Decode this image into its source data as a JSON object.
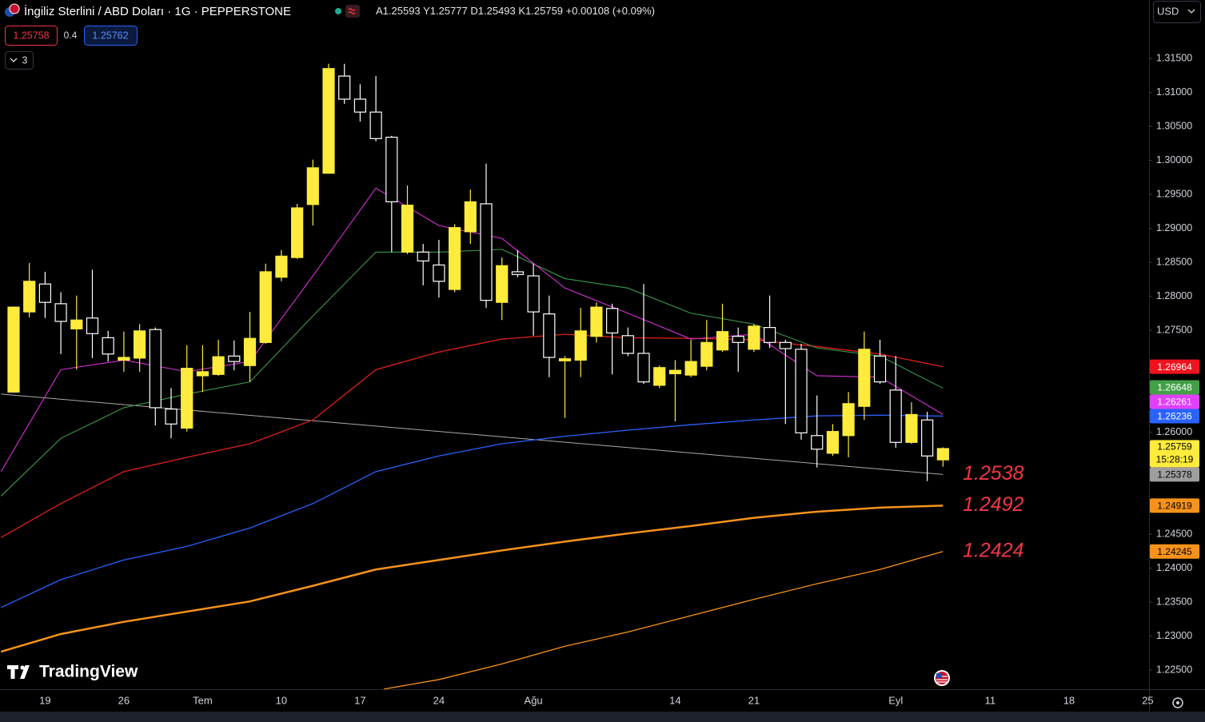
{
  "header": {
    "title": "İngiliz Sterlini / ABD Doları · 1G · PEPPERSTONE",
    "ohlc_labels": [
      "A",
      "Y",
      "D",
      "K"
    ],
    "change": "+0.00108 (+0.09%)",
    "sell": 1.25758,
    "spread": 0.4,
    "buy": 1.25762,
    "indicators": 3,
    "currency": "USD",
    "brand": "TradingView"
  },
  "chart_data": {
    "type": "candlestick",
    "up_color": "#ffeb3b",
    "down_color": "#ffffff",
    "grid": false,
    "x": [
      0,
      1,
      2,
      3,
      4,
      5,
      6,
      7,
      8,
      9,
      10,
      11,
      12,
      13,
      14,
      15,
      16,
      17,
      18,
      19,
      20,
      21,
      22,
      23,
      24,
      25,
      26,
      27,
      28,
      29,
      30,
      31,
      32,
      33,
      34,
      35,
      36,
      37,
      38,
      39,
      40,
      41,
      42,
      43,
      44,
      45,
      46,
      47,
      48,
      49,
      50,
      51,
      52,
      53,
      54,
      55,
      56,
      57,
      58,
      59
    ],
    "open": [
      1.2659,
      1.2777,
      1.2818,
      1.2789,
      1.2752,
      1.2768,
      1.2739,
      1.2706,
      1.2709,
      1.2751,
      1.2634,
      1.2606,
      1.2683,
      1.2685,
      1.2712,
      1.2698,
      1.2732,
      1.2828,
      1.2857,
      1.2935,
      1.2981,
      1.3124,
      1.309,
      1.3071,
      1.3034,
      1.2865,
      1.2865,
      1.2846,
      1.281,
      1.2895,
      1.2936,
      1.2791,
      1.2836,
      1.283,
      1.2774,
      1.2705,
      1.2706,
      1.2741,
      1.2782,
      1.2742,
      1.2716,
      1.2669,
      1.2686,
      1.2684,
      1.2697,
      1.2721,
      1.2741,
      1.2722,
      1.2754,
      1.2732,
      1.2722,
      1.2595,
      1.2569,
      1.2595,
      1.2638,
      1.2712,
      1.2662,
      1.2585,
      1.2618,
      1.25593
    ],
    "high": [
      1.2785,
      1.2849,
      1.2836,
      1.2806,
      1.2801,
      1.2839,
      1.2749,
      1.2748,
      1.2759,
      1.2754,
      1.2665,
      1.2728,
      1.2728,
      1.2736,
      1.2735,
      1.2777,
      1.2848,
      1.2868,
      1.2936,
      1.3001,
      1.3142,
      1.3142,
      1.3112,
      1.3124,
      1.3036,
      1.2963,
      1.2877,
      1.2883,
      1.2906,
      1.2957,
      1.2995,
      1.2857,
      1.2868,
      1.2848,
      1.2801,
      1.2712,
      1.2783,
      1.2791,
      1.2789,
      1.2754,
      1.2818,
      1.2698,
      1.2706,
      1.2736,
      1.2765,
      1.2789,
      1.2754,
      1.2759,
      1.2801,
      1.2736,
      1.273,
      1.2654,
      1.2612,
      1.2659,
      1.2748,
      1.2736,
      1.2712,
      1.2644,
      1.263,
      1.25777
    ],
    "low": [
      1.2658,
      1.2769,
      1.2768,
      1.2715,
      1.2692,
      1.2709,
      1.2704,
      1.2689,
      1.2689,
      1.261,
      1.2591,
      1.2601,
      1.2659,
      1.2683,
      1.2691,
      1.2674,
      1.273,
      1.2822,
      1.2855,
      1.2904,
      1.2981,
      1.3083,
      1.3057,
      1.3028,
      1.2865,
      1.2862,
      1.2816,
      1.2798,
      1.2806,
      1.2877,
      1.2783,
      1.2765,
      1.2828,
      1.2742,
      1.2681,
      1.2621,
      1.2681,
      1.2732,
      1.2685,
      1.2712,
      1.2671,
      1.2665,
      1.2616,
      1.2681,
      1.2691,
      1.2718,
      1.2689,
      1.2718,
      1.2724,
      1.2612,
      1.2589,
      1.2548,
      1.2565,
      1.2563,
      1.2618,
      1.2671,
      1.2577,
      1.2583,
      1.2528,
      1.25493
    ],
    "close": [
      1.2784,
      1.2822,
      1.2791,
      1.2763,
      1.2765,
      1.2745,
      1.2715,
      1.271,
      1.2749,
      1.2636,
      1.2612,
      1.2694,
      1.2689,
      1.2711,
      1.2704,
      1.2738,
      1.2836,
      1.2859,
      1.293,
      1.2989,
      1.3135,
      1.309,
      1.3071,
      1.3032,
      1.2939,
      1.2934,
      1.2852,
      1.2822,
      1.2901,
      1.2939,
      1.2794,
      1.2845,
      1.2832,
      1.2777,
      1.271,
      1.2708,
      1.2749,
      1.2784,
      1.2746,
      1.2716,
      1.2674,
      1.2695,
      1.2691,
      1.2704,
      1.2732,
      1.2748,
      1.2732,
      1.2756,
      1.2732,
      1.2723,
      1.2599,
      1.2575,
      1.2601,
      1.2642,
      1.2722,
      1.2674,
      1.2585,
      1.2626,
      1.2565,
      1.25759
    ],
    "countdown": "15:28:19",
    "series": [
      {
        "color": "#f7931a",
        "width": 1.3,
        "tag_color": "#f7931a",
        "tag_text": "#000000",
        "x": [
          23.5,
          27,
          31,
          35,
          39,
          43,
          47,
          51,
          55,
          59
        ],
        "values": [
          1.2222,
          1.2236,
          1.2259,
          1.2285,
          1.2306,
          1.233,
          1.2354,
          1.2377,
          1.2398,
          1.24245
        ]
      },
      {
        "color": "#f7931a",
        "width": 2.5,
        "tag_color": "#f7931a",
        "tag_text": "#000000",
        "x": [
          -0.8,
          3,
          7,
          11,
          15,
          19,
          23,
          27,
          31,
          35,
          39,
          43,
          47,
          51,
          55,
          59
        ],
        "values": [
          1.2277,
          1.2303,
          1.2321,
          1.2336,
          1.2351,
          1.2374,
          1.2398,
          1.2412,
          1.2426,
          1.2439,
          1.2451,
          1.2462,
          1.2474,
          1.2483,
          1.2489,
          1.24919
        ]
      },
      {
        "color": "#a9a9a9",
        "width": 1,
        "tag_color": "#9e9e9e",
        "tag_text": "#000000",
        "x": [
          -0.8,
          59
        ],
        "values": [
          1.2656,
          1.25378
        ]
      },
      {
        "color": "#2962ff",
        "width": 1.3,
        "tag_color": "#2962ff",
        "tag_text": "#ffffff",
        "x": [
          -0.8,
          3,
          7,
          11,
          15,
          19,
          23,
          27,
          31,
          35,
          39,
          43,
          47,
          51,
          55,
          59
        ],
        "values": [
          1.2342,
          1.2383,
          1.2412,
          1.2432,
          1.2459,
          1.2495,
          1.2542,
          1.2565,
          1.2583,
          1.2594,
          1.2603,
          1.2611,
          1.2618,
          1.2624,
          1.2625,
          1.26236
        ]
      },
      {
        "color": "#e0201a",
        "width": 1.3,
        "tag_color": "#f0131e",
        "tag_text": "#ffffff",
        "x": [
          -0.8,
          3,
          7,
          11,
          15,
          19,
          23,
          27,
          31,
          35,
          39,
          43,
          47,
          51,
          55,
          59
        ],
        "values": [
          1.2445,
          1.2495,
          1.2542,
          1.2563,
          1.2583,
          1.2618,
          1.2692,
          1.2718,
          1.2737,
          1.2744,
          1.2739,
          1.2738,
          1.2736,
          1.2726,
          1.2715,
          1.26964
        ]
      },
      {
        "color": "#3a9a4a",
        "width": 1.1,
        "tag_color": "#43a047",
        "tag_text": "#ffffff",
        "x": [
          -0.8,
          3,
          7,
          11,
          15,
          19,
          23,
          27,
          31,
          35,
          39,
          43,
          47,
          51,
          55,
          59
        ],
        "values": [
          1.2506,
          1.2591,
          1.2636,
          1.2656,
          1.2674,
          1.2771,
          1.2865,
          1.2865,
          1.2869,
          1.2826,
          1.2812,
          1.2775,
          1.2759,
          1.2724,
          1.2712,
          1.26648
        ]
      },
      {
        "color": "#d62fd6",
        "width": 1.1,
        "tag_color": "#e040fb",
        "tag_text": "#ffffff",
        "x": [
          -0.8,
          3,
          7,
          11,
          15,
          19,
          23,
          27,
          31,
          35,
          39,
          43,
          47,
          51,
          55,
          59
        ],
        "values": [
          1.2542,
          1.2692,
          1.2706,
          1.2689,
          1.2704,
          1.283,
          1.2959,
          1.2904,
          1.2885,
          1.2812,
          1.2775,
          1.2737,
          1.2744,
          1.2683,
          1.2681,
          1.26261
        ]
      }
    ],
    "annotations": [
      1.2538,
      1.2492,
      1.2424
    ],
    "annotation_color": "#f23645",
    "xlim": [
      -0.863,
      72.08
    ],
    "xticks": [
      {
        "value": 2,
        "label": "19"
      },
      {
        "value": 7,
        "label": "26"
      },
      {
        "value": 12,
        "label": "Tem"
      },
      {
        "value": 17,
        "label": "10"
      },
      {
        "value": 22,
        "label": "17"
      },
      {
        "value": 27,
        "label": "24"
      },
      {
        "value": 33,
        "label": "Ağu"
      },
      {
        "value": 42,
        "label": "14"
      },
      {
        "value": 47,
        "label": "21"
      },
      {
        "value": 56,
        "label": "Eyl"
      },
      {
        "value": 62,
        "label": "11"
      },
      {
        "value": 67,
        "label": "18"
      },
      {
        "value": 72,
        "label": "25"
      }
    ],
    "ylim": [
      1.22218,
      1.32006
    ],
    "yticks": [
      {
        "value": 1.225,
        "label": "1.22500"
      },
      {
        "value": 1.23,
        "label": "1.23000"
      },
      {
        "value": 1.235,
        "label": "1.23500"
      },
      {
        "value": 1.24,
        "label": "1.24000"
      },
      {
        "value": 1.245,
        "label": "1.24500"
      },
      {
        "value": 1.26,
        "label": "1.26000"
      },
      {
        "value": 1.275,
        "label": "1.27500"
      },
      {
        "value": 1.28,
        "label": "1.28000"
      },
      {
        "value": 1.285,
        "label": "1.28500"
      },
      {
        "value": 1.29,
        "label": "1.29000"
      },
      {
        "value": 1.295,
        "label": "1.29500"
      },
      {
        "value": 1.3,
        "label": "1.30000"
      },
      {
        "value": 1.305,
        "label": "1.30500"
      },
      {
        "value": 1.31,
        "label": "1.31000"
      },
      {
        "value": 1.315,
        "label": "1.31500"
      }
    ]
  }
}
